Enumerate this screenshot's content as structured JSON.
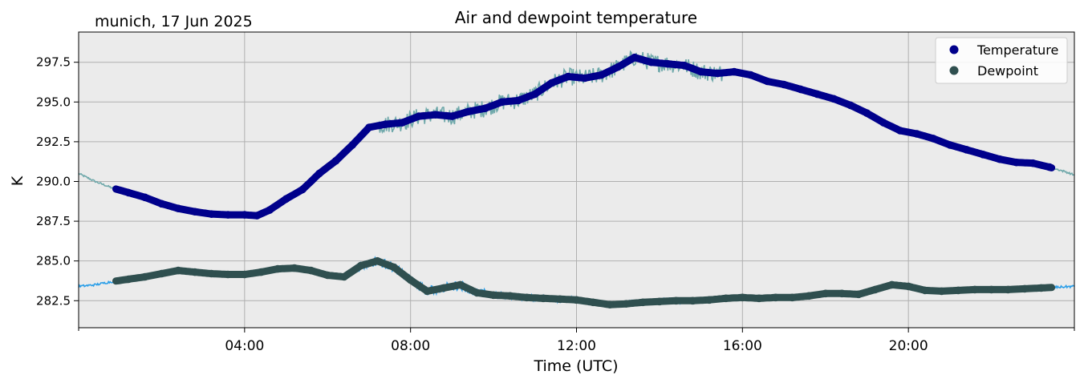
{
  "chart_data": {
    "type": "line",
    "title": "Air and dewpoint temperature",
    "subtitle": "munich, 17 Jun 2025",
    "xlabel": "Time (UTC)",
    "ylabel": "K",
    "xlim": [
      0,
      24
    ],
    "ylim": [
      280.8,
      299.4
    ],
    "x_ticks": [
      {
        "value": 4,
        "label": "04:00"
      },
      {
        "value": 8,
        "label": "08:00"
      },
      {
        "value": 12,
        "label": "12:00"
      },
      {
        "value": 16,
        "label": "16:00"
      },
      {
        "value": 20,
        "label": "20:00"
      }
    ],
    "y_ticks": [
      {
        "value": 282.5,
        "label": "282.5"
      },
      {
        "value": 285.0,
        "label": "285.0"
      },
      {
        "value": 287.5,
        "label": "287.5"
      },
      {
        "value": 290.0,
        "label": "290.0"
      },
      {
        "value": 292.5,
        "label": "292.5"
      },
      {
        "value": 295.0,
        "label": "295.0"
      },
      {
        "value": 297.5,
        "label": "297.5"
      }
    ],
    "grid": true,
    "legend_position": "top-right",
    "series": [
      {
        "name": "Temperature",
        "color": "#00008b",
        "raw_color": "#6fa8aa",
        "x": [
          0,
          0.4,
          0.8,
          1.2,
          1.6,
          2.0,
          2.4,
          2.8,
          3.2,
          3.6,
          4.0,
          4.3,
          4.6,
          5.0,
          5.4,
          5.8,
          6.2,
          6.6,
          7.0,
          7.4,
          7.8,
          8.2,
          8.6,
          9.0,
          9.4,
          9.8,
          10.2,
          10.6,
          11.0,
          11.4,
          11.8,
          12.2,
          12.6,
          13.0,
          13.4,
          13.8,
          14.2,
          14.6,
          15.0,
          15.4,
          15.8,
          16.2,
          16.6,
          17.0,
          17.4,
          17.8,
          18.2,
          18.6,
          19.0,
          19.4,
          19.8,
          20.2,
          20.6,
          21.0,
          21.4,
          21.8,
          22.2,
          22.6,
          23.0,
          23.4,
          23.8,
          24.0
        ],
        "values": [
          290.5,
          290.0,
          289.6,
          289.3,
          289.0,
          288.6,
          288.3,
          288.1,
          287.95,
          287.9,
          287.9,
          287.85,
          288.2,
          288.9,
          289.5,
          290.5,
          291.3,
          292.3,
          293.4,
          293.6,
          293.7,
          294.1,
          294.2,
          294.1,
          294.4,
          294.6,
          295.0,
          295.1,
          295.5,
          296.2,
          296.6,
          296.5,
          296.7,
          297.2,
          297.8,
          297.5,
          297.4,
          297.3,
          296.9,
          296.8,
          296.9,
          296.7,
          296.3,
          296.1,
          295.8,
          295.5,
          295.2,
          294.8,
          294.3,
          293.7,
          293.2,
          293.0,
          292.7,
          292.3,
          292.0,
          291.7,
          291.4,
          291.2,
          291.15,
          290.9,
          290.6,
          290.4
        ]
      },
      {
        "name": "Dewpoint",
        "color": "#2f4f4f",
        "raw_color": "#2a9ee8",
        "x": [
          0,
          0.4,
          0.8,
          1.2,
          1.6,
          2.0,
          2.4,
          2.8,
          3.2,
          3.6,
          4.0,
          4.4,
          4.8,
          5.2,
          5.6,
          6.0,
          6.4,
          6.8,
          7.2,
          7.6,
          8.0,
          8.4,
          8.8,
          9.2,
          9.6,
          10.0,
          10.4,
          10.8,
          11.2,
          11.6,
          12.0,
          12.4,
          12.8,
          13.2,
          13.6,
          14.0,
          14.4,
          14.8,
          15.2,
          15.6,
          16.0,
          16.4,
          16.8,
          17.2,
          17.6,
          18.0,
          18.4,
          18.8,
          19.2,
          19.6,
          20.0,
          20.4,
          20.8,
          21.2,
          21.6,
          22.0,
          22.4,
          22.8,
          23.2,
          23.6,
          24.0
        ],
        "values": [
          283.4,
          283.5,
          283.7,
          283.85,
          284.0,
          284.2,
          284.4,
          284.3,
          284.2,
          284.15,
          284.15,
          284.3,
          284.5,
          284.55,
          284.4,
          284.1,
          284.0,
          284.7,
          285.0,
          284.6,
          283.8,
          283.1,
          283.3,
          283.5,
          283.0,
          282.85,
          282.8,
          282.7,
          282.65,
          282.6,
          282.55,
          282.4,
          282.25,
          282.3,
          282.4,
          282.45,
          282.5,
          282.5,
          282.55,
          282.65,
          282.7,
          282.65,
          282.7,
          282.7,
          282.8,
          282.95,
          282.95,
          282.9,
          283.2,
          283.5,
          283.4,
          283.15,
          283.1,
          283.15,
          283.2,
          283.2,
          283.2,
          283.25,
          283.3,
          283.35,
          283.4
        ]
      }
    ]
  }
}
